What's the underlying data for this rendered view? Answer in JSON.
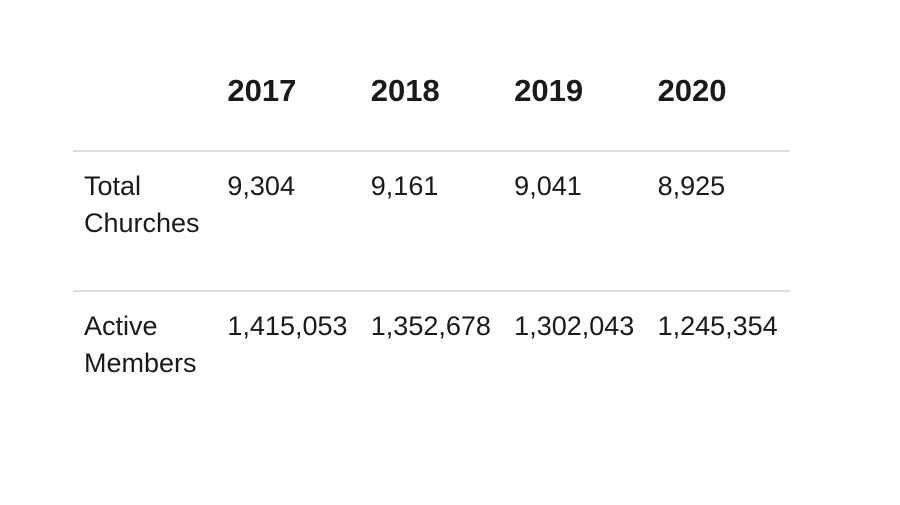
{
  "chart_data": {
    "type": "table",
    "categories": [
      "2017",
      "2018",
      "2019",
      "2020"
    ],
    "series": [
      {
        "name": "Total Churches",
        "values": [
          9304,
          9161,
          9041,
          8925
        ]
      },
      {
        "name": "Active Members",
        "values": [
          1415053,
          1352678,
          1302043,
          1245354
        ]
      }
    ],
    "title": "",
    "legend": false,
    "grid": "horizontal-row-dividers"
  },
  "table": {
    "column_headers": [
      "2017",
      "2018",
      "2019",
      "2020"
    ],
    "rows": [
      {
        "label": "Total Churches",
        "values": [
          "9,304",
          "9,161",
          "9,041",
          "8,925"
        ]
      },
      {
        "label": "Active Members",
        "values": [
          "1,415,053",
          "1,352,678",
          "1,302,043",
          "1,245,354"
        ]
      }
    ]
  },
  "colors": {
    "text": "#1a1a1a",
    "divider": "#dedede",
    "background": "#ffffff"
  }
}
